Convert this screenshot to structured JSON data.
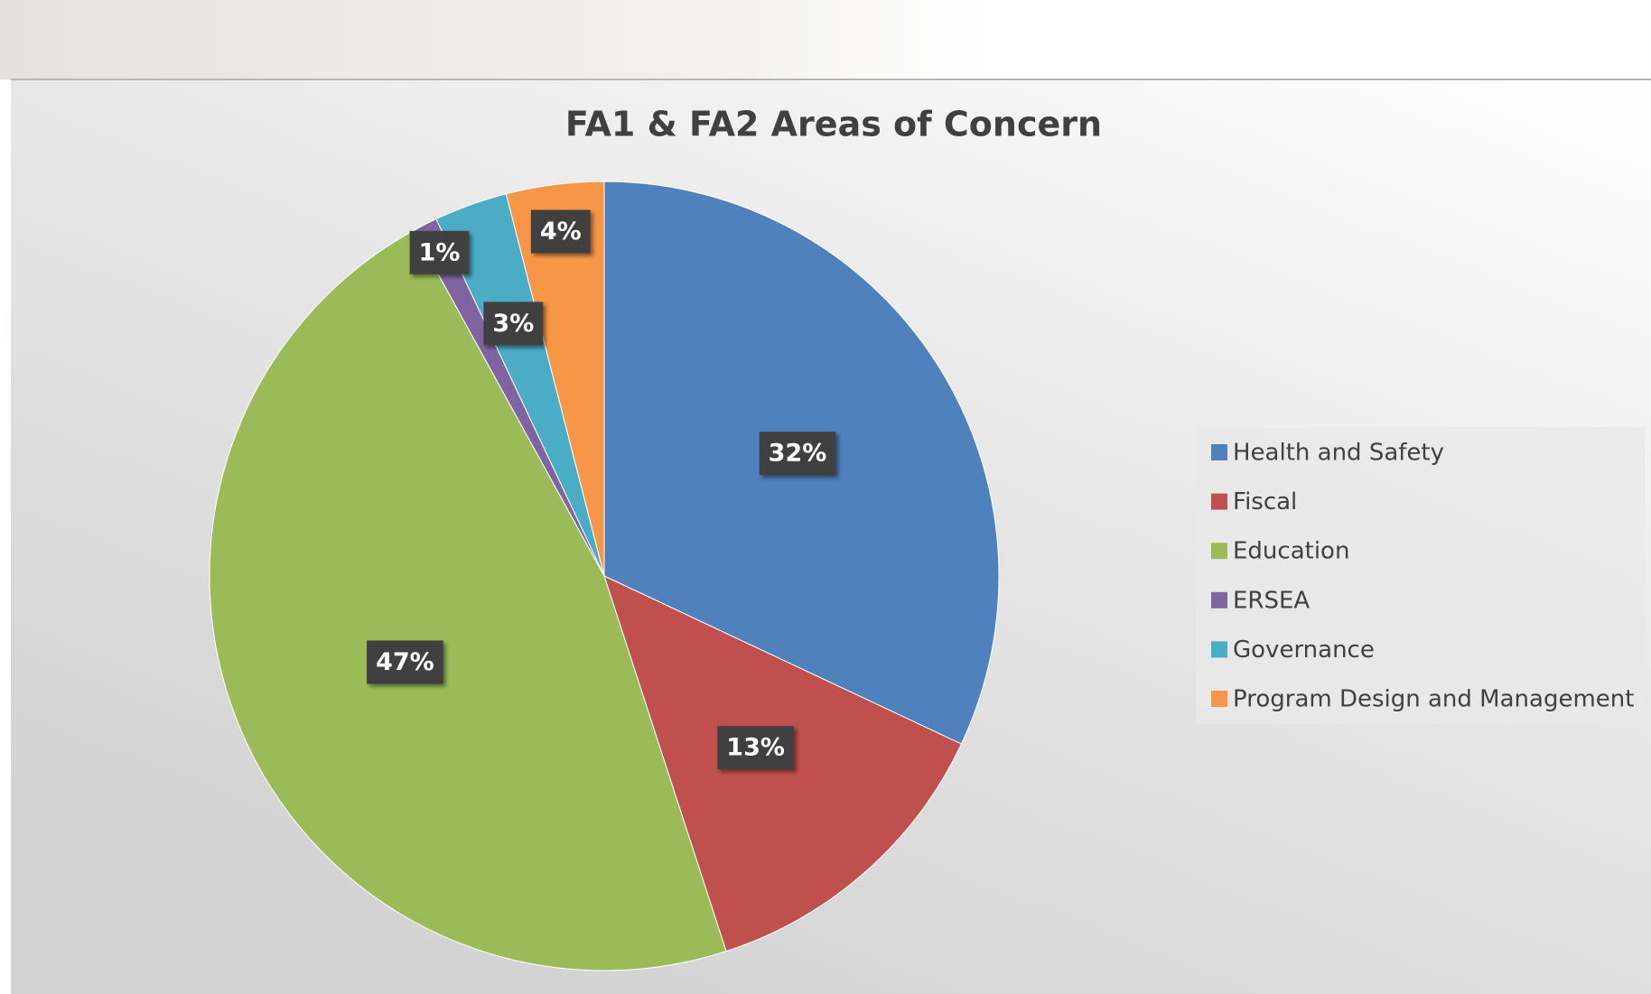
{
  "chart_data": {
    "type": "pie",
    "title": "FA1 & FA2 Areas of Concern",
    "categories": [
      "Health and Safety",
      "Fiscal",
      "Education",
      "ERSEA",
      "Governance",
      "Program Design and Management"
    ],
    "values": [
      32,
      13,
      47,
      1,
      3,
      4
    ],
    "value_labels": [
      "32%",
      "13%",
      "47%",
      "1%",
      "3%",
      "4%"
    ],
    "colors": [
      "#4f81bd",
      "#c0504d",
      "#9bbb59",
      "#8064a2",
      "#4bacc6",
      "#f79646"
    ],
    "legend": "right"
  }
}
